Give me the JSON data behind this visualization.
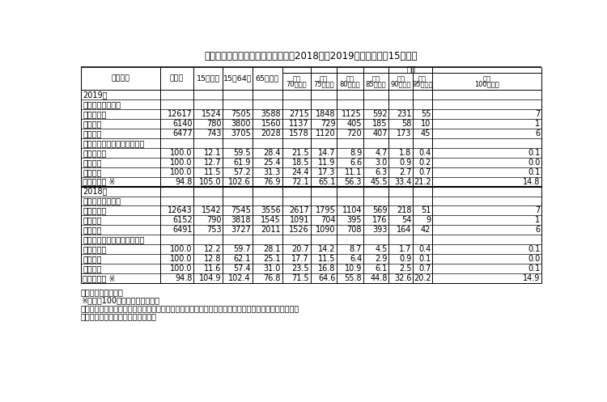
{
  "title": "表１　年齢３区分別人口及び割合（2018年、2019年）－　９月15日現在",
  "header_col0": "区　　分",
  "header_cols": [
    "総人口",
    "15歳未満",
    "15～64歳",
    "65歳以上"
  ],
  "header_uchi_top": "うち",
  "header_uchi_subs": [
    "うち\n70歳以上",
    "うち\n75歳以上",
    "うち\n80歳以上",
    "うち\n85歳以上",
    "うち\n90歳以上",
    "うち\n95歳以上",
    "うち\n100歳以上"
  ],
  "footer_notes": [
    "資料：「人口推計」",
    "※）女性100人に対する男性の数",
    "注）表中の数値は、単位未満を四捨五入しているため、合計の数値と内訳の計が一致しない場合がある",
    "　（以下この章において同じ。）。"
  ],
  "sections": [
    {
      "year": "2019年",
      "subsections": [
        {
          "label": "　人　口（万人）",
          "rows": [
            {
              "name": "　　男女計",
              "values": [
                "12617",
                "1524",
                "7505",
                "3588",
                "2715",
                "1848",
                "1125",
                "592",
                "231",
                "55",
                "7"
              ]
            },
            {
              "name": "　　　男",
              "values": [
                "6140",
                "780",
                "3800",
                "1560",
                "1137",
                "729",
                "405",
                "185",
                "58",
                "10",
                "1"
              ]
            },
            {
              "name": "　　　女",
              "values": [
                "6477",
                "743",
                "3705",
                "2028",
                "1578",
                "1120",
                "720",
                "407",
                "173",
                "45",
                "6"
              ]
            }
          ]
        },
        {
          "label": "　総人口に占める割合（％）",
          "rows": [
            {
              "name": "　　男女計",
              "values": [
                "100.0",
                "12.1",
                "59.5",
                "28.4",
                "21.5",
                "14.7",
                "8.9",
                "4.7",
                "1.8",
                "0.4",
                "0.1"
              ]
            },
            {
              "name": "　　　男",
              "values": [
                "100.0",
                "12.7",
                "61.9",
                "25.4",
                "18.5",
                "11.9",
                "6.6",
                "3.0",
                "0.9",
                "0.2",
                "0.0"
              ]
            },
            {
              "name": "　　　女",
              "values": [
                "100.0",
                "11.5",
                "57.2",
                "31.3",
                "24.4",
                "17.3",
                "11.1",
                "6.3",
                "2.7",
                "0.7",
                "0.1"
              ]
            }
          ]
        }
      ],
      "sex_ratio": {
        "name": "　人口性比 ※",
        "values": [
          "94.8",
          "105.0",
          "102.6",
          "76.9",
          "72.1",
          "65.1",
          "56.3",
          "45.5",
          "33.4",
          "21.2",
          "14.8"
        ]
      }
    },
    {
      "year": "2018年",
      "subsections": [
        {
          "label": "　人　口（万人）",
          "rows": [
            {
              "name": "　　男女計",
              "values": [
                "12643",
                "1542",
                "7545",
                "3556",
                "2617",
                "1795",
                "1104",
                "569",
                "218",
                "51",
                "7"
              ]
            },
            {
              "name": "　　　男",
              "values": [
                "6152",
                "790",
                "3818",
                "1545",
                "1091",
                "704",
                "395",
                "176",
                "54",
                "9",
                "1"
              ]
            },
            {
              "name": "　　　女",
              "values": [
                "6491",
                "753",
                "3727",
                "2011",
                "1526",
                "1090",
                "708",
                "393",
                "164",
                "42",
                "6"
              ]
            }
          ]
        },
        {
          "label": "　総人口に占める割合（％）",
          "rows": [
            {
              "name": "　　男女計",
              "values": [
                "100.0",
                "12.2",
                "59.7",
                "28.1",
                "20.7",
                "14.2",
                "8.7",
                "4.5",
                "1.7",
                "0.4",
                "0.1"
              ]
            },
            {
              "name": "　　　男",
              "values": [
                "100.0",
                "12.8",
                "62.1",
                "25.1",
                "17.7",
                "11.5",
                "6.4",
                "2.9",
                "0.9",
                "0.1",
                "0.0"
              ]
            },
            {
              "name": "　　　女",
              "values": [
                "100.0",
                "11.6",
                "57.4",
                "31.0",
                "23.5",
                "16.8",
                "10.9",
                "6.1",
                "2.5",
                "0.7",
                "0.1"
              ]
            }
          ]
        }
      ],
      "sex_ratio": {
        "name": "　人口性比 ※",
        "values": [
          "94.8",
          "104.9",
          "102.4",
          "76.8",
          "71.5",
          "64.6",
          "55.8",
          "44.8",
          "32.6",
          "20.2",
          "14.9"
        ]
      }
    }
  ]
}
